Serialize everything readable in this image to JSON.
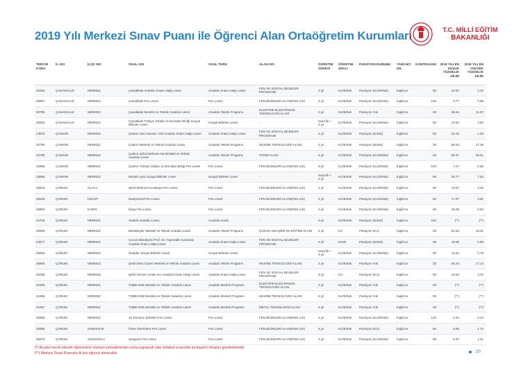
{
  "title": "2019 Yılı Merkezi Sınav Puanı ile Öğrenci Alan Ortaöğretim Kurumları",
  "logo": {
    "line1": "T.C. MİLLİ EĞİTİM",
    "line2": "BAKANLIĞI",
    "color": "#d3232f"
  },
  "headers": [
    "TERCİH KODU",
    "İL ADI",
    "İLÇE ADI",
    "OKUL ADI",
    "OKUL TÜRÜ",
    "ALAN ADI",
    "ÖĞRETİM SÜRESİ",
    "ÖĞRETİM ŞEKLİ",
    "PANSİYON DURUMU",
    "YABANCI DİL",
    "KONTENJANI",
    "2018 YILI EN DÜŞÜK YÜZDELİK DİLİM",
    "2018 YILI EN YÜKSEK YÜZDELİK DİLİM"
  ],
  "rows": [
    [
      "26364",
      "ÇANAKKALE",
      "MERKEZ",
      "Çanakkale Anadolu İmam Hatip Lisesi",
      "Anadolu İmam Hatip Lisesi",
      "FEN VE SOSYAL BİLİMLER PROGRAMI",
      "4 yıl",
      "Kız/Erkek",
      "Pansiyon (Kız/Erkek)",
      "İngilizce",
      "90",
      "24.51",
      "2.02"
    ],
    [
      "25857",
      "ÇANAKKALE",
      "MERKEZ",
      "Çanakkale Fen Lisesi",
      "Fen Lisesi",
      "FEN BİLİMLERİ ALANI(FEN LİS)",
      "4 yıl",
      "Kız/Erkek",
      "Pansiyon (Kız/Erkek)",
      "İngilizce",
      "120",
      "3.77",
      "0.98"
    ],
    [
      "20785",
      "ÇANAKKALE",
      "MERKEZ",
      "Çanakkale Mesleki ve Teknik Anadolu Lisesi",
      "Anadolu Teknik Programı",
      "ELEKTRİK-ELEKTRONİK TEKNOLOJİSİ ALANI",
      "4 yıl",
      "Kız/Erkek",
      "Pansiyon Yok",
      "İngilizce",
      "30",
      "38.54",
      "11.67"
    ],
    [
      "25862",
      "ÇANAKKALE",
      "MERKEZ",
      "Çanakkale Türkiye Odalar ve Borsalar Birliği Sosyal Bilimler Lisesi",
      "Sosyal Bilimler Lisesi",
      "-",
      "Hazırlık + 4 yıl",
      "Kız/Erkek",
      "Pansiyon (Kız/Erkek)",
      "İngilizce",
      "90",
      "13.52",
      "3.50"
    ],
    [
      "24876",
      "ÇANKIRI",
      "MERKEZ",
      "Çankırı Hacı Murad-i Veli Anadolu İmam Hatip Lisesi",
      "Anadolu İmam Hatip Lisesi",
      "FEN VE SOSYAL BİLİMLER PROGRAMI",
      "4 yıl",
      "Kız/Erkek",
      "Pansiyon (Erkek)",
      "İngilizce",
      "90",
      "23.46",
      "1.00"
    ],
    [
      "20790",
      "ÇANKIRI",
      "MERKEZ",
      "Çankırı Mesleki ve Teknik Anadolu Lisesi",
      "Anadolu Teknik Programı",
      "MAKİNE TEKNOLOJİSİ ALANI",
      "4 yıl",
      "Kız/Erkek",
      "Pansiyon (Erkek)",
      "İngilizce",
      "30",
      "58.93",
      "27.36"
    ],
    [
      "20795",
      "ÇANKIRI",
      "MERKEZ",
      "Çankırı Şehit Mehmet Ata Mesleki ve Teknik Anadolu Lisesi",
      "Anadolu Teknik Programı",
      "TARIM ALANI",
      "4 yıl",
      "Kız/Erkek",
      "Pansiyon (Kız/Erkek)",
      "İngilizce",
      "30",
      "59.47",
      "29.01"
    ],
    [
      "23868",
      "ÇANKIRI",
      "MERKEZ",
      "Çankırı Türkiye Odalar ve Borsalar Birliği Fen Lisesi",
      "Fen Lisesi",
      "FEN BİLİMLERİ ALANI(FEN LİS)",
      "4 yıl",
      "Kız/Erkek",
      "Pansiyon (Kız/Erkek)",
      "İngilizce",
      "120",
      "7.27",
      "0.86"
    ],
    [
      "23865",
      "ÇANKIRI",
      "MERKEZ",
      "Neziah Ayaz Sosyal Bilimler Lisesi",
      "Sosyal Bilimler Lisesi",
      "-",
      "Hazırlık + 4 yıl",
      "Kız/Erkek",
      "Pansiyon (Kız/Erkek)",
      "İngilizce",
      "90",
      "20.77",
      "7.52"
    ],
    [
      "25843",
      "ÇORUM",
      "ALACA",
      "Şehit Mehmet Kocakaya Fen Lisesi",
      "Fen Lisesi",
      "FEN BİLİMLERİ ALANI(FEN LİS)",
      "4 yıl",
      "Kız/Erkek",
      "Pansiyon (Kız/Erkek)",
      "İngilizce",
      "60",
      "13.97",
      "3.26"
    ],
    [
      "25848",
      "ÇORUM",
      "İSKİLİP",
      "Danişmend Fen Lisesi",
      "Fen Lisesi",
      "FEN BİLİMLERİ ALANI(FEN LİS)",
      "4 yıl",
      "Kız/Erkek",
      "Pansiyon (Kız/Erkek)",
      "İngilizce",
      "60",
      "17.07",
      "3.81"
    ],
    [
      "25853",
      "ÇORUM",
      "KARGI",
      "Kargı Fen Lisesi",
      "Fen Lisesi",
      "FEN BİLİMLERİ ALANI(FEN LİS)",
      "4 yıl",
      "Kız/Erkek",
      "Pansiyon (Kız/Erkek)",
      "İngilizce",
      "60",
      "18.08",
      "6.53"
    ],
    [
      "24726",
      "ÇORUM",
      "MERKEZ",
      "Atatürk Anadolu Lisesi",
      "Anadolu Lisesi",
      "-",
      "4 yıl",
      "Kız/Erkek",
      "Pansiyon (Erkek)",
      "İngilizce",
      "150",
      "(**)",
      "(**)"
    ],
    [
      "20800",
      "ÇORUM",
      "MERKEZ",
      "Bahabeyler Mesleki ve Teknik Anadolu Lisesi",
      "Anadolu Teknik Programı",
      "ÇOCUK GELİŞİMİ VE EĞİTİMİ ALANI",
      "4 yıl",
      "Kız",
      "Pansiyon (Kız)",
      "İngilizce",
      "30",
      "51.52",
      "18.01"
    ],
    [
      "24877",
      "ÇORUM",
      "MERKEZ",
      "Çorum Belediyesi Prof. Dr. Hayreddin Karaman Anadolu İmam Hatip Lisesi",
      "Anadolu İmam Hatip Lisesi",
      "FEN VE SOSYAL BİLİMLER PROGRAMI",
      "4 yıl",
      "Erkek",
      "Pansiyon (Erkek)",
      "İngilizce",
      "90",
      "18.96",
      "2.89"
    ],
    [
      "25863",
      "ÇORUM",
      "MERKEZ",
      "Özejder Sosyal Bilimler Lisesi",
      "Sosyal Bilimler Lisesi",
      "-",
      "Hazırlık + 4 yıl",
      "Kız/Erkek",
      "Pansiyon (Kız/Erkek)",
      "İngilizce",
      "90",
      "11.51",
      "2.79"
    ],
    [
      "20805",
      "ÇORUM",
      "MERKEZ",
      "Şehit Emin Güner Mesleki ve Teknik Anadolu Lisesi",
      "Anadolu Teknik Programı",
      "MAKİNE TEKNOLOJİSİ ALANI",
      "4 yıl",
      "Kız/Erkek",
      "Pansiyon Yok",
      "İngilizce",
      "30",
      "60.24",
      "17.14"
    ],
    [
      "26288",
      "ÇORUM",
      "MERKEZ",
      "Şehit Osman Arslan Kız Anadolu İmam Hatip Lisesi",
      "Anadolu İmam Hatip Lisesi",
      "FEN VE SOSYAL BİLİMLER PROGRAMI",
      "4 yıl",
      "Kız",
      "Pansiyon (Kız)",
      "İngilizce",
      "90",
      "23.84",
      "3.32"
    ],
    [
      "31005",
      "ÇORUM",
      "MERKEZ",
      "TOBB-OSB Mesleki ve Teknik Anadolu Lisesi",
      "Anadolu Meslek Programı",
      "ELEKTRİK-ELEKTRONİK TEKNOLOJİSİ ALANI",
      "4 yıl",
      "Kız/Erkek",
      "Pansiyon Yok",
      "İngilizce",
      "30",
      "(**)",
      "(**)"
    ],
    [
      "31006",
      "ÇORUM",
      "MERKEZ",
      "TOBB-OSB Mesleki ve Teknik Anadolu Lisesi",
      "Anadolu Meslek Programı",
      "MAKİNE TEKNOLOJİSİ ALANI",
      "4 yıl",
      "Kız/Erkek",
      "Pansiyon Yok",
      "İngilizce",
      "30",
      "(**)",
      "(**)"
    ],
    [
      "31007",
      "ÇORUM",
      "MERKEZ",
      "TOBB-OSB Mesleki ve Teknik Anadolu Lisesi",
      "Anadolu Meslek Programı",
      "METAL TEKNOLOJİSİ ALANI",
      "4 yıl",
      "Kız/Erkek",
      "Pansiyon Yok",
      "İngilizce",
      "30",
      "(**)",
      "(**)"
    ],
    [
      "25858",
      "ÇORUM",
      "MERKEZ",
      "15 Temmuz Şehitleri Fen Lisesi",
      "Fen Lisesi",
      "FEN BİLİMLERİ ALANI(FEN LİS)",
      "4 yıl",
      "Kız/Erkek",
      "Pansiyon (Kız/Erkek)",
      "İngilizce",
      "120",
      "2.42",
      "0.10"
    ],
    [
      "25868",
      "ÇORUM",
      "OSMANCIK",
      "Ömer Derindere Fen Lisesi",
      "Fen Lisesi",
      "FEN BİLİMLERİ ALANI(FEN LİS)",
      "4 yıl",
      "Kız/Erkek",
      "Pansiyon (Kız)",
      "İngilizce",
      "60",
      "8.96",
      "1.72"
    ],
    [
      "25873",
      "ÇORUM",
      "SUNGURLU",
      "Sungurlu Fen Lisesi",
      "Fen Lisesi",
      "FEN BİLİMLERİ ALANI(FEN LİS)",
      "4 yıl",
      "Kız/Erkek",
      "Pansiyon (Kız/Erkek)",
      "İngilizce",
      "90",
      "6.97",
      "1.21"
    ]
  ],
  "footnotes": [
    "(*) Bu plan tercih edecek öğrencilerin merkezi yerleştirmeden sonra yapılacak olan mülakat sınavında da başarılı olmaları gerekmektedir.",
    "(**) Merkezi Sınav Puanıyla ilk kez öğrenci alınacaktır."
  ],
  "page_number": "20"
}
